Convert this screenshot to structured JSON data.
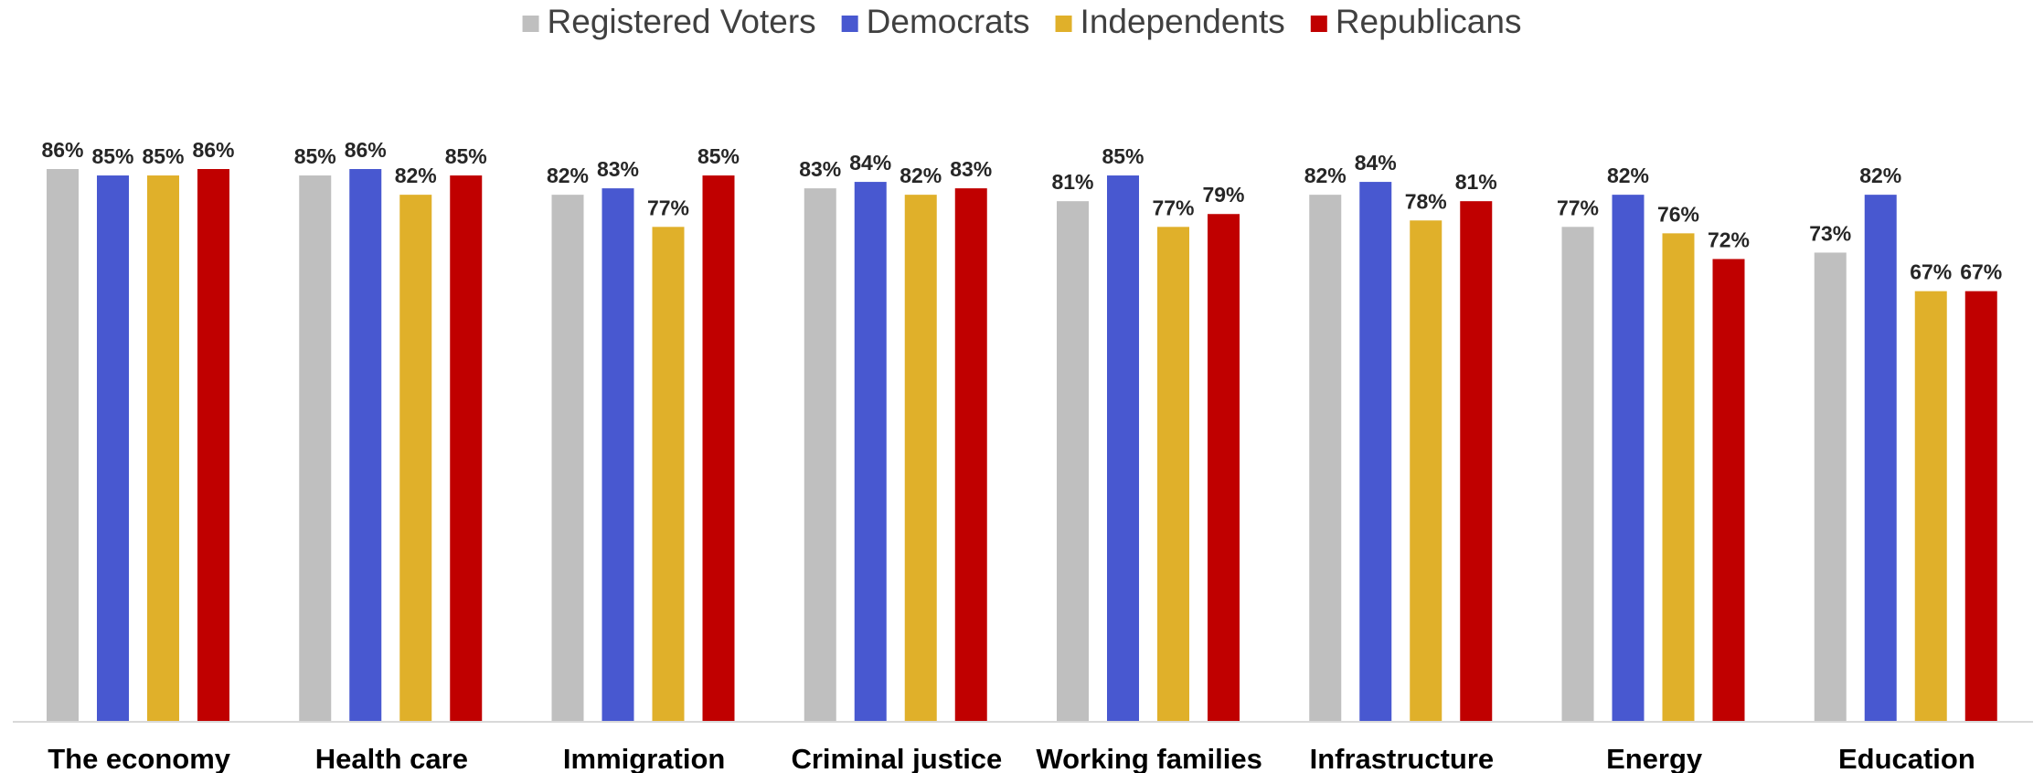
{
  "chart_data": {
    "type": "bar",
    "categories": [
      "The economy",
      "Health care",
      "Immigration",
      "Criminal justice",
      "Working families",
      "Infrastructure",
      "Energy",
      "Education"
    ],
    "series": [
      {
        "name": "Registered Voters",
        "color": "#bfbfbf",
        "values": [
          86,
          85,
          82,
          83,
          81,
          82,
          77,
          73
        ]
      },
      {
        "name": "Democrats",
        "color": "#4858d0",
        "values": [
          85,
          86,
          83,
          84,
          85,
          84,
          82,
          82
        ]
      },
      {
        "name": "Independents",
        "color": "#e0b02a",
        "values": [
          85,
          82,
          77,
          82,
          77,
          78,
          76,
          67
        ]
      },
      {
        "name": "Republicans",
        "color": "#c00000",
        "values": [
          86,
          85,
          85,
          83,
          79,
          81,
          72,
          67
        ]
      }
    ],
    "value_suffix": "%",
    "ylim": [
      0,
      86
    ],
    "grid": false,
    "legend_position": "top-center",
    "title": "",
    "xlabel": "",
    "ylabel": ""
  }
}
